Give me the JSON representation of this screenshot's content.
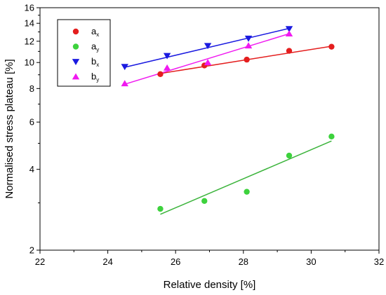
{
  "chart_data": {
    "type": "scatter",
    "xlabel": "Relative density [%]",
    "ylabel": "Normalised stress plateau [%]",
    "xlim": [
      22,
      32
    ],
    "ylim": [
      2,
      16
    ],
    "yscale": "log",
    "xticks": [
      22,
      24,
      26,
      28,
      30,
      32
    ],
    "yticks": [
      2,
      4,
      6,
      8,
      10,
      12,
      14,
      16
    ],
    "grid": false,
    "legend_position": "top-left",
    "series": [
      {
        "name": "a",
        "subscript": "x",
        "color": "#e41e1e",
        "marker": "circle",
        "points": [
          [
            25.55,
            9.05
          ],
          [
            26.85,
            9.75
          ],
          [
            28.1,
            10.25
          ],
          [
            29.35,
            11.05
          ],
          [
            30.6,
            11.45
          ]
        ],
        "fit": [
          [
            25.55,
            9.1
          ],
          [
            30.6,
            11.5
          ]
        ]
      },
      {
        "name": "a",
        "subscript": "y",
        "color": "#3dd23d",
        "fit_color": "#3cb43c",
        "marker": "circle",
        "points": [
          [
            25.55,
            2.85
          ],
          [
            26.85,
            3.05
          ],
          [
            28.1,
            3.3
          ],
          [
            29.35,
            4.5
          ],
          [
            30.6,
            5.3
          ]
        ],
        "fit": [
          [
            25.55,
            2.72
          ],
          [
            30.6,
            5.1
          ]
        ]
      },
      {
        "name": "b",
        "subscript": "x",
        "color": "#1a1ae0",
        "marker": "triangle-down",
        "points": [
          [
            24.5,
            9.65
          ],
          [
            25.75,
            10.6
          ],
          [
            26.95,
            11.55
          ],
          [
            28.15,
            12.3
          ],
          [
            29.35,
            13.35
          ]
        ],
        "fit": [
          [
            24.5,
            9.6
          ],
          [
            29.35,
            13.4
          ]
        ]
      },
      {
        "name": "b",
        "subscript": "y",
        "color": "#f019f0",
        "marker": "triangle-up",
        "points": [
          [
            24.5,
            8.35
          ],
          [
            25.75,
            9.55
          ],
          [
            26.95,
            10.0
          ],
          [
            28.15,
            11.55
          ],
          [
            29.35,
            12.8
          ]
        ],
        "fit": [
          [
            24.5,
            8.3
          ],
          [
            29.35,
            12.8
          ]
        ]
      }
    ]
  }
}
